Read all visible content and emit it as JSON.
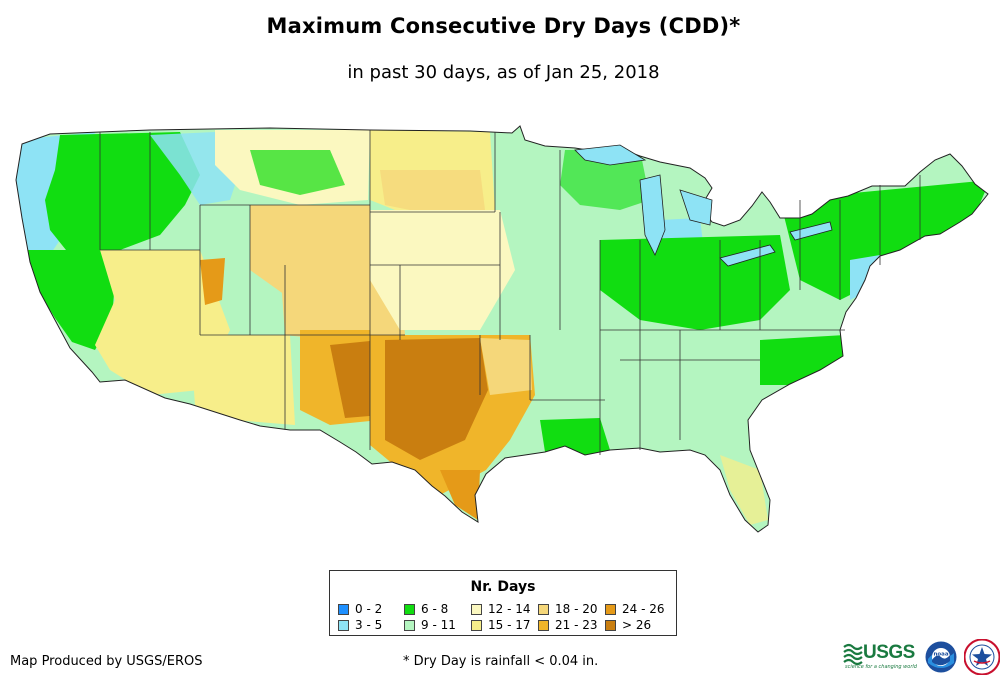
{
  "title": "Maximum Consecutive Dry Days (CDD)*",
  "subtitle": "in past 30 days, as of Jan 25, 2018",
  "legend": {
    "title": "Nr. Days",
    "items": [
      {
        "label": "0 - 2",
        "color": "#1e90ff"
      },
      {
        "label": "3 - 5",
        "color": "#8ee3f5"
      },
      {
        "label": "6 - 8",
        "color": "#11dd11"
      },
      {
        "label": "9 - 11",
        "color": "#b4f5c0"
      },
      {
        "label": "12 - 14",
        "color": "#fbf8c0"
      },
      {
        "label": "15 - 17",
        "color": "#f7ee8a"
      },
      {
        "label": "18 - 20",
        "color": "#f5d77a"
      },
      {
        "label": "21 - 23",
        "color": "#f0b52a"
      },
      {
        "label": "24 - 26",
        "color": "#e59a18"
      },
      {
        "label": "> 26",
        "color": "#c97e10"
      }
    ]
  },
  "credit": "Map Produced by USGS/EROS",
  "footnote": "* Dry Day is rainfall < 0.04 in.",
  "logos": {
    "usgs": "USGS",
    "usgs_tagline": "science for a changing world",
    "noaa": "noaa"
  }
}
